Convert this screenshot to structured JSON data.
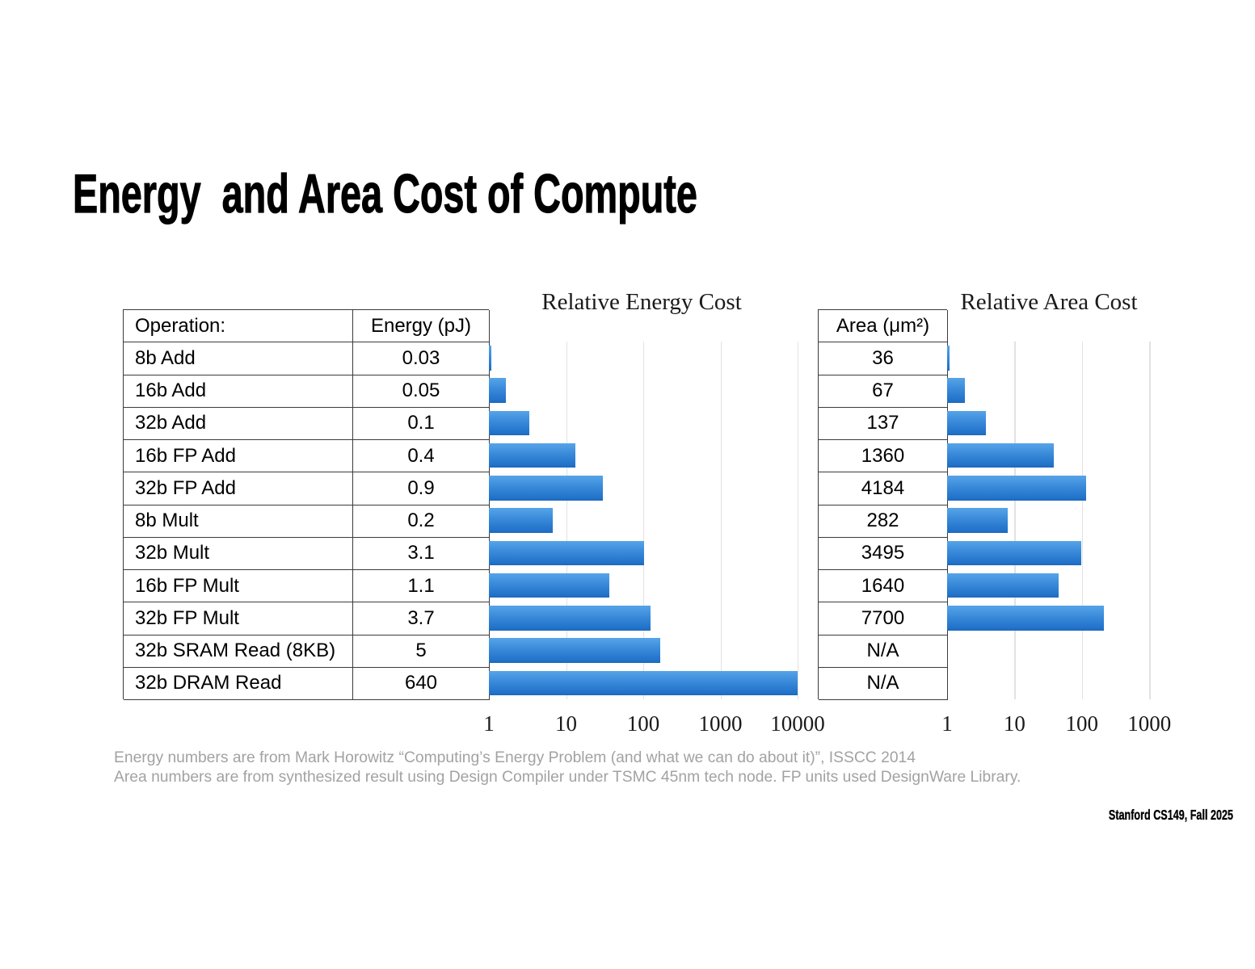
{
  "slide": {
    "title": "Energy  and Area Cost of Compute",
    "footnotes": [
      "Energy numbers are from Mark Horowitz “Computing’s Energy Problem (and what we can do about it)”, ISSCC 2014",
      "Area numbers are from synthesized result using Design Compiler under TSMC 45nm tech node. FP units used DesignWare Library."
    ],
    "footer": "Stanford CS149, Fall 2025"
  },
  "chart_data": [
    {
      "type": "bar",
      "orientation": "horizontal",
      "title": "Relative Energy Cost",
      "x_scale": "log",
      "x_ticks": [
        "1",
        "10",
        "100",
        "1000",
        "10000"
      ],
      "x_range": [
        1,
        10000
      ],
      "grid": true,
      "table_headers": [
        "Operation:",
        "Energy (pJ)"
      ],
      "categories": [
        "8b Add",
        "16b Add",
        "32b Add",
        "16b FP Add",
        "32b FP Add",
        "8b Mult",
        "32b Mult",
        "16b FP Mult",
        "32b FP Mult",
        "32b SRAM Read (8KB)",
        "32b DRAM Read"
      ],
      "cell_values": [
        "0.03",
        "0.05",
        "0.1",
        "0.4",
        "0.9",
        "0.2",
        "3.1",
        "1.1",
        "3.7",
        "5",
        "640"
      ],
      "values": [
        1,
        1.667,
        3.333,
        13.33,
        30,
        6.667,
        103.3,
        36.67,
        123.3,
        166.7,
        21333
      ],
      "bar_color": "#2e7fd2"
    },
    {
      "type": "bar",
      "orientation": "horizontal",
      "title": "Relative Area Cost",
      "x_scale": "log",
      "x_ticks": [
        "1",
        "10",
        "100",
        "1000"
      ],
      "x_range": [
        1,
        1000
      ],
      "grid": true,
      "table_headers": [
        "Area (μm²)"
      ],
      "categories": [
        "8b Add",
        "16b Add",
        "32b Add",
        "16b FP Add",
        "32b FP Add",
        "8b Mult",
        "32b Mult",
        "16b FP Mult",
        "32b FP Mult",
        "32b SRAM Read (8KB)",
        "32b DRAM Read"
      ],
      "cell_values": [
        "36",
        "67",
        "137",
        "1360",
        "4184",
        "282",
        "3495",
        "1640",
        "7700",
        "N/A",
        "N/A"
      ],
      "values": [
        1,
        1.861,
        3.806,
        37.78,
        116.2,
        7.833,
        97.08,
        45.56,
        213.9,
        null,
        null
      ],
      "bar_color": "#2e7fd2"
    }
  ]
}
